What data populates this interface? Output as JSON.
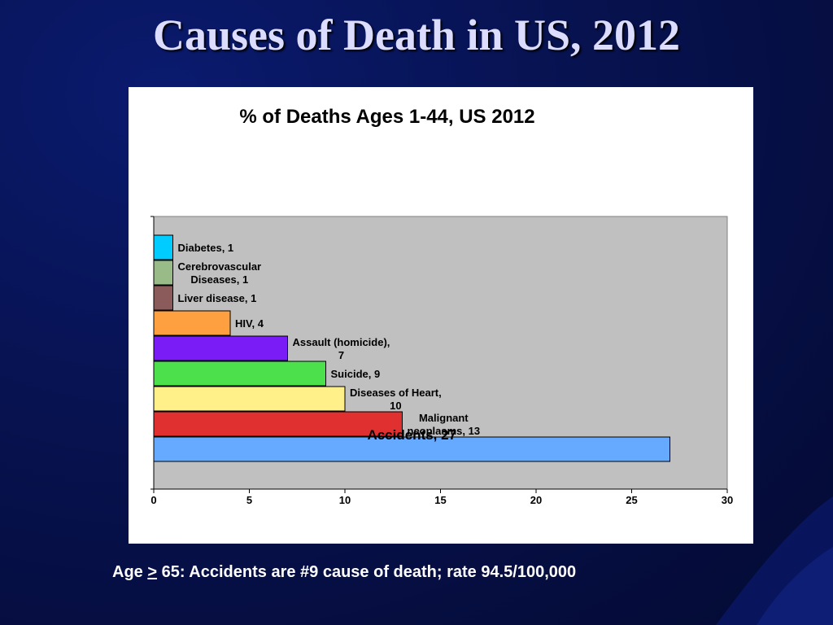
{
  "slide": {
    "title": "Causes of Death in US, 2012",
    "footnote_prefix": "Age ",
    "footnote_symbol": ">",
    "footnote_text": " 65: Accidents are #9 cause of death; rate 94.5/100,000"
  },
  "chart_data": {
    "type": "bar",
    "orientation": "horizontal",
    "title": "% of Deaths Ages 1-44, US 2012",
    "xlim": [
      0,
      30
    ],
    "xticks": [
      0,
      5,
      10,
      15,
      20,
      25,
      30
    ],
    "grid": false,
    "legend": "none",
    "plot_background": "#c0c0c0",
    "bars": [
      {
        "label_lines": [
          "Diabetes, 1"
        ],
        "value": 1,
        "color": "#00ccff"
      },
      {
        "label_lines": [
          "Cerebrovascular",
          "Diseases, 1"
        ],
        "value": 1,
        "color": "#99bb88"
      },
      {
        "label_lines": [
          "Liver disease, 1"
        ],
        "value": 1,
        "color": "#8b5a5a"
      },
      {
        "label_lines": [
          "HIV, 4"
        ],
        "value": 4,
        "color": "#ffa040"
      },
      {
        "label_lines": [
          "Assault (homicide),",
          "7"
        ],
        "value": 7,
        "color": "#7a1cf5"
      },
      {
        "label_lines": [
          "Suicide, 9"
        ],
        "value": 9,
        "color": "#4ce04c"
      },
      {
        "label_lines": [
          "Diseases of Heart,",
          "10"
        ],
        "value": 10,
        "color": "#fff08a"
      },
      {
        "label_lines": [
          "Malignant",
          "neoplasms, 13"
        ],
        "value": 13,
        "color": "#e03030"
      },
      {
        "label_lines": [
          "Accidents, 27"
        ],
        "value": 27,
        "color": "#66aaff"
      }
    ]
  }
}
